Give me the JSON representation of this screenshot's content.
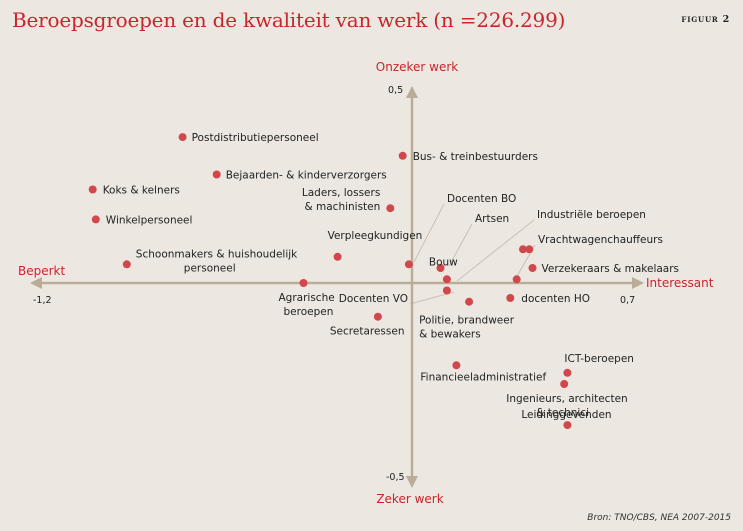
{
  "title": "Beroepsgroepen en de kwaliteit van werk (n =226.299)",
  "figure_label": "Figuur 2",
  "source": "Bron: TNO/CBS, NEA 2007-2015",
  "colors": {
    "accent": "#c8252c",
    "axis": "#b9ad9a",
    "dot": "#d2474b",
    "background": "#ece8e1"
  },
  "chart_data": {
    "type": "scatter",
    "title": "Beroepsgroepen en de kwaliteit van werk (n =226.299)",
    "xlim": [
      -1.2,
      0.7
    ],
    "ylim": [
      -0.5,
      0.5
    ],
    "axis_ends": {
      "x_left": "Beperkt",
      "x_right": "Interessant",
      "y_top": "Onzeker werk",
      "y_bottom": "Zeker werk"
    },
    "tick_labels": {
      "x_min": "-1,2",
      "x_max": "0,7",
      "y_max": "0,5",
      "y_min": "-0,5"
    },
    "grid": false,
    "points": [
      {
        "label": "Postdistributiepersoneel",
        "x": -0.74,
        "y": 0.39
      },
      {
        "label": "Bus- & treinbestuurders",
        "x": -0.03,
        "y": 0.34
      },
      {
        "label": "Bejaarden- & kinderverzorgers",
        "x": -0.63,
        "y": 0.29
      },
      {
        "label": "Koks & kelners",
        "x": -1.03,
        "y": 0.25
      },
      {
        "label": "Laders, lossers & machinisten",
        "x": -0.07,
        "y": 0.2
      },
      {
        "label": "Winkelpersoneel",
        "x": -1.02,
        "y": 0.17
      },
      {
        "label": "Docenten BO",
        "x": -0.01,
        "y": 0.05
      },
      {
        "label": "Artsen",
        "x": 0.09,
        "y": 0.04
      },
      {
        "label": "Industriële beroepen",
        "x": 0.37,
        "y": 0.09
      },
      {
        "label": "Vrachtwagenchauffeurs",
        "x": 0.35,
        "y": 0.09
      },
      {
        "label": "Verzekeraars & makelaars",
        "x": 0.38,
        "y": 0.04
      },
      {
        "label": "Verpleegkundigen",
        "x": -0.24,
        "y": 0.07
      },
      {
        "label": "Schoonmakers & huishoudelijk personeel",
        "x": -0.92,
        "y": 0.05
      },
      {
        "label": "Bouw",
        "x": 0.11,
        "y": 0.01
      },
      {
        "label": "Agrarische beroepen",
        "x": -0.35,
        "y": 0.0
      },
      {
        "label": "Docenten VO",
        "x": 0.11,
        "y": -0.02
      },
      {
        "label": "docenten HO",
        "x": 0.31,
        "y": -0.04
      },
      {
        "label": "Politie, brandweer & bewakers",
        "x": 0.18,
        "y": -0.05
      },
      {
        "label": "Secretaressen",
        "x": -0.11,
        "y": -0.09
      },
      {
        "label": "Financieeladministratief",
        "x": 0.14,
        "y": -0.22
      },
      {
        "label": "ICT-beroepen",
        "x": 0.49,
        "y": -0.24
      },
      {
        "label": "Ingenieurs, architecten & technici",
        "x": 0.48,
        "y": -0.27
      },
      {
        "label": "Leidinggevenden",
        "x": 0.49,
        "y": -0.38
      },
      {
        "label": "",
        "x": 0.33,
        "y": 0.01
      }
    ]
  }
}
